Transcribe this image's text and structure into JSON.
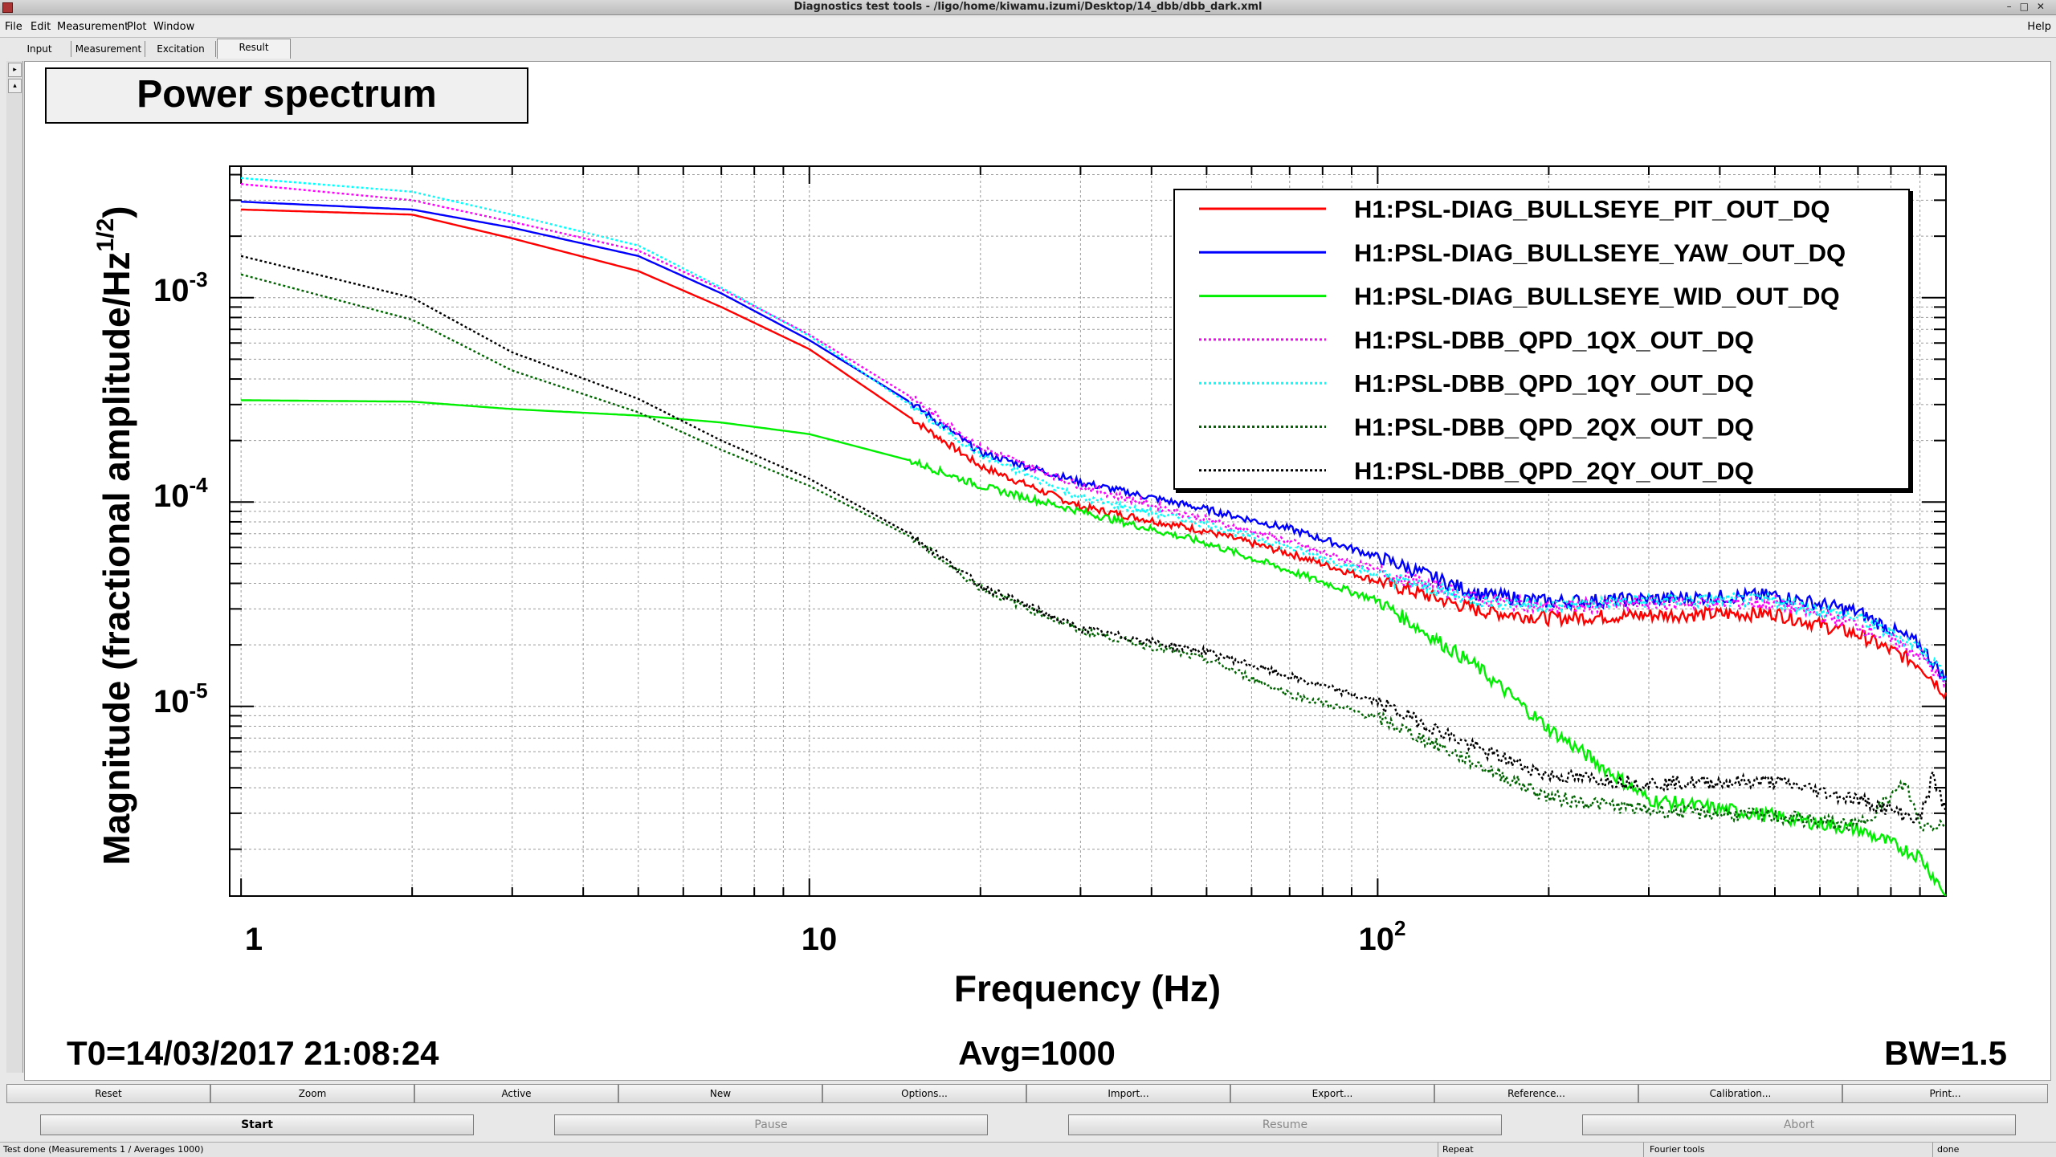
{
  "window": {
    "title": "Diagnostics test tools - /ligo/home/kiwamu.izumi/Desktop/14_dbb/dbb_dark.xml",
    "controls": "–□✕"
  },
  "menubar": {
    "items": [
      "File",
      "Edit",
      "Measurement",
      "Plot",
      "Window"
    ],
    "help": "Help"
  },
  "tabs": [
    "Input",
    "Measurement",
    "Excitation",
    "Result"
  ],
  "active_tab": "Result",
  "plot": {
    "title": "Power spectrum",
    "t0": "T0=14/03/2017 21:08:24",
    "avg": "Avg=1000",
    "bw": "BW=1.5",
    "ylabel_main": "Magnitude (fractional amplitude/Hz",
    "ylabel_exp": "1/2",
    "ylabel_close": ")",
    "xlabel": "Frequency (Hz)",
    "x_ticks": [
      {
        "base": "1",
        "exp": ""
      },
      {
        "base": "10",
        "exp": ""
      },
      {
        "base": "10",
        "exp": "2"
      }
    ],
    "y_ticks": [
      {
        "base": "10",
        "exp": "-3"
      },
      {
        "base": "10",
        "exp": "-4"
      },
      {
        "base": "10",
        "exp": "-5"
      }
    ]
  },
  "chart_data": {
    "type": "line",
    "title": "Power spectrum",
    "xlabel": "Frequency (Hz)",
    "ylabel": "Magnitude (fractional amplitude/Hz^1/2)",
    "xscale": "log",
    "yscale": "log",
    "xlim": [
      0.955,
      1000
    ],
    "ylim": [
      1.18e-06,
      0.0044
    ],
    "grid": true,
    "legend_position": "top-right",
    "series": [
      {
        "name": "H1:PSL-DIAG_BULLSEYE_PIT_OUT_DQ",
        "color": "#ff0000",
        "dash": "solid",
        "points": [
          [
            1,
            0.0027
          ],
          [
            2,
            0.00255
          ],
          [
            3,
            0.00195
          ],
          [
            5,
            0.00135
          ],
          [
            7,
            0.0009
          ],
          [
            10,
            0.00056
          ],
          [
            15,
            0.00026
          ],
          [
            20,
            0.00015
          ],
          [
            30,
            9.5e-05
          ],
          [
            50,
            7.2e-05
          ],
          [
            70,
            5.6e-05
          ],
          [
            100,
            4.1e-05
          ],
          [
            150,
            2.95e-05
          ],
          [
            200,
            2.7e-05
          ],
          [
            300,
            2.8e-05
          ],
          [
            500,
            2.85e-05
          ],
          [
            700,
            2.25e-05
          ],
          [
            900,
            1.6e-05
          ],
          [
            1000,
            1.15e-05
          ]
        ]
      },
      {
        "name": "H1:PSL-DIAG_BULLSEYE_YAW_OUT_DQ",
        "color": "#0000ff",
        "dash": "solid",
        "points": [
          [
            1,
            0.00295
          ],
          [
            2,
            0.0027
          ],
          [
            3,
            0.0022
          ],
          [
            5,
            0.0016
          ],
          [
            7,
            0.00105
          ],
          [
            10,
            0.00062
          ],
          [
            15,
            0.00031
          ],
          [
            20,
            0.000175
          ],
          [
            30,
            0.000125
          ],
          [
            50,
            9.2e-05
          ],
          [
            70,
            7.4e-05
          ],
          [
            100,
            5.4e-05
          ],
          [
            150,
            3.55e-05
          ],
          [
            200,
            3.25e-05
          ],
          [
            300,
            3.35e-05
          ],
          [
            500,
            3.5e-05
          ],
          [
            700,
            2.9e-05
          ],
          [
            900,
            2e-05
          ],
          [
            1000,
            1.35e-05
          ]
        ]
      },
      {
        "name": "H1:PSL-DIAG_BULLSEYE_WID_OUT_DQ",
        "color": "#00ee00",
        "dash": "solid",
        "points": [
          [
            1,
            0.000315
          ],
          [
            2,
            0.00031
          ],
          [
            3,
            0.000285
          ],
          [
            5,
            0.000265
          ],
          [
            7,
            0.000245
          ],
          [
            10,
            0.000215
          ],
          [
            15,
            0.00016
          ],
          [
            20,
            0.00012
          ],
          [
            30,
            9e-05
          ],
          [
            50,
            6.3e-05
          ],
          [
            70,
            4.6e-05
          ],
          [
            100,
            3.3e-05
          ],
          [
            150,
            1.55e-05
          ],
          [
            200,
            7.8e-06
          ],
          [
            300,
            3.5e-06
          ],
          [
            500,
            2.9e-06
          ],
          [
            700,
            2.5e-06
          ],
          [
            900,
            1.85e-06
          ],
          [
            1000,
            1.2e-06
          ]
        ]
      },
      {
        "name": "H1:PSL-DBB_QPD_1QX_OUT_DQ",
        "color": "#ff00ff",
        "dash": "dotted",
        "points": [
          [
            1,
            0.0036
          ],
          [
            2,
            0.003
          ],
          [
            3,
            0.00235
          ],
          [
            5,
            0.0017
          ],
          [
            7,
            0.0011
          ],
          [
            10,
            0.00066
          ],
          [
            15,
            0.00033
          ],
          [
            20,
            0.000185
          ],
          [
            30,
            0.00012
          ],
          [
            50,
            8.2e-05
          ],
          [
            70,
            6.4e-05
          ],
          [
            100,
            4.6e-05
          ],
          [
            150,
            3.35e-05
          ],
          [
            200,
            3.05e-05
          ],
          [
            300,
            3.2e-05
          ],
          [
            500,
            3.2e-05
          ],
          [
            700,
            2.5e-05
          ],
          [
            900,
            1.8e-05
          ],
          [
            1000,
            1.25e-05
          ]
        ]
      },
      {
        "name": "H1:PSL-DBB_QPD_1QY_OUT_DQ",
        "color": "#00ffff",
        "dash": "dotted",
        "points": [
          [
            1,
            0.00385
          ],
          [
            2,
            0.0033
          ],
          [
            3,
            0.00255
          ],
          [
            5,
            0.0018
          ],
          [
            7,
            0.00112
          ],
          [
            10,
            0.00065
          ],
          [
            15,
            0.0003
          ],
          [
            20,
            0.00017
          ],
          [
            30,
            0.000105
          ],
          [
            50,
            7.8e-05
          ],
          [
            70,
            6e-05
          ],
          [
            100,
            4.4e-05
          ],
          [
            150,
            3.3e-05
          ],
          [
            200,
            3.1e-05
          ],
          [
            300,
            3.3e-05
          ],
          [
            500,
            3.3e-05
          ],
          [
            700,
            2.7e-05
          ],
          [
            900,
            1.95e-05
          ],
          [
            1000,
            1.4e-05
          ]
        ]
      },
      {
        "name": "H1:PSL-DBB_QPD_2QX_OUT_DQ",
        "color": "#006400",
        "dash": "dotted",
        "points": [
          [
            1,
            0.0013
          ],
          [
            2,
            0.00078
          ],
          [
            3,
            0.00044
          ],
          [
            5,
            0.000275
          ],
          [
            7,
            0.00018
          ],
          [
            10,
            0.00012
          ],
          [
            15,
            6.8e-05
          ],
          [
            20,
            3.8e-05
          ],
          [
            30,
            2.35e-05
          ],
          [
            50,
            1.7e-05
          ],
          [
            70,
            1.15e-05
          ],
          [
            100,
            8.8e-06
          ],
          [
            150,
            5.2e-06
          ],
          [
            200,
            3.6e-06
          ],
          [
            300,
            3.1e-06
          ],
          [
            500,
            2.9e-06
          ],
          [
            700,
            2.6e-06
          ],
          [
            850,
            4.2e-06
          ],
          [
            900,
            2.6e-06
          ],
          [
            1000,
            2.7e-06
          ]
        ]
      },
      {
        "name": "H1:PSL-DBB_QPD_2QY_OUT_DQ",
        "color": "#000000",
        "dash": "dotted",
        "points": [
          [
            1,
            0.0016
          ],
          [
            2,
            0.001
          ],
          [
            3,
            0.00054
          ],
          [
            5,
            0.00032
          ],
          [
            7,
            0.0002
          ],
          [
            10,
            0.00013
          ],
          [
            15,
            7e-05
          ],
          [
            20,
            3.9e-05
          ],
          [
            30,
            2.4e-05
          ],
          [
            50,
            1.85e-05
          ],
          [
            70,
            1.4e-05
          ],
          [
            100,
            1.05e-05
          ],
          [
            150,
            6.2e-06
          ],
          [
            200,
            4.6e-06
          ],
          [
            300,
            4.2e-06
          ],
          [
            500,
            4.3e-06
          ],
          [
            700,
            3.5e-06
          ],
          [
            900,
            2.8e-06
          ],
          [
            950,
            4.6e-06
          ],
          [
            1000,
            3e-06
          ]
        ]
      }
    ]
  },
  "buttons_row1": [
    "Reset",
    "Zoom",
    "Active",
    "New",
    "Options...",
    "Import...",
    "Export...",
    "Reference...",
    "Calibration...",
    "Print..."
  ],
  "buttons_row2": {
    "start": "Start",
    "pause": "Pause",
    "resume": "Resume",
    "abort": "Abort"
  },
  "statusbar": {
    "message": "Test done (Measurements 1 / Averages 1000)",
    "repeat": "Repeat",
    "tools": "Fourier tools",
    "state": "done"
  }
}
